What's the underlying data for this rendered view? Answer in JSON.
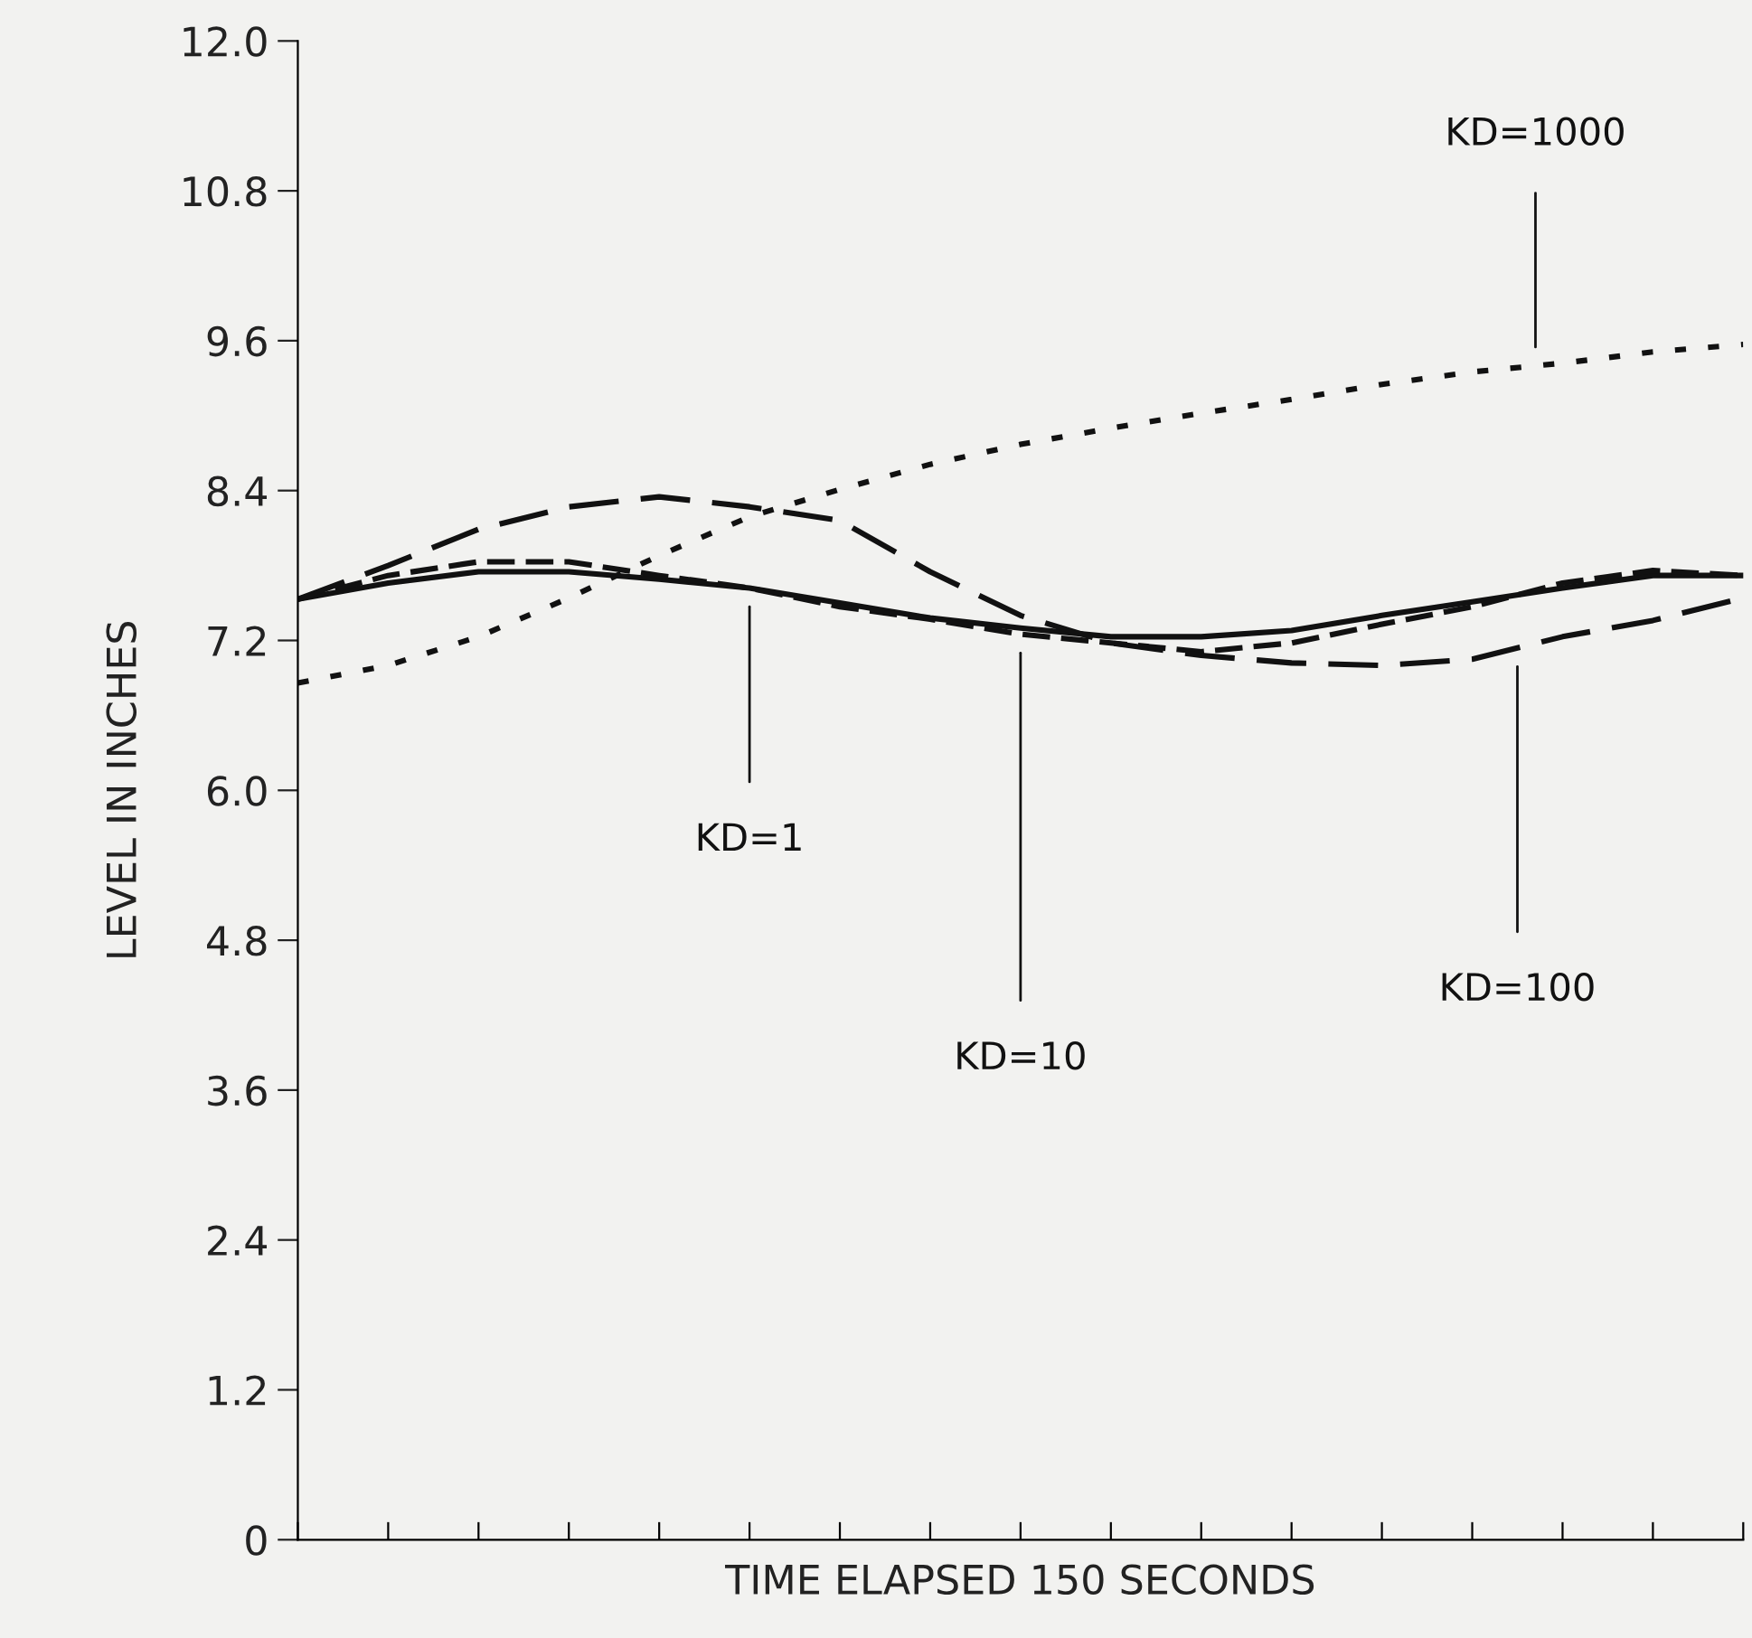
{
  "chart_data": {
    "type": "line",
    "xlabel": "TIME ELAPSED 150 SECONDS",
    "ylabel": "LEVEL IN INCHES",
    "categories": [
      null,
      null,
      null,
      null,
      null,
      null,
      null,
      null,
      null,
      null,
      null,
      null,
      null,
      null,
      null,
      null,
      null
    ],
    "series": [
      {
        "name": "KD=1",
        "color": "#111111",
        "line_style": "solid",
        "values": [
          7.53,
          7.66,
          7.75,
          7.75,
          7.69,
          7.62,
          7.5,
          7.38,
          7.3,
          7.23,
          7.23,
          7.28,
          7.4,
          7.51,
          7.62,
          7.72,
          7.72
        ]
      },
      {
        "name": "KD=10",
        "color": "#111111",
        "line_style": "dashed",
        "values": [
          7.53,
          7.72,
          7.83,
          7.83,
          7.72,
          7.62,
          7.47,
          7.37,
          7.25,
          7.18,
          7.11,
          7.18,
          7.33,
          7.47,
          7.66,
          7.76,
          7.72
        ]
      },
      {
        "name": "KD=100",
        "color": "#111111",
        "line_style": "dashed",
        "values": [
          7.53,
          7.8,
          8.09,
          8.27,
          8.35,
          8.27,
          8.16,
          7.75,
          7.4,
          7.18,
          7.08,
          7.02,
          7.0,
          7.05,
          7.23,
          7.36,
          7.54
        ]
      },
      {
        "name": "KD=1000",
        "color": "#111111",
        "line_style": "dotted",
        "values": [
          6.86,
          7.0,
          7.23,
          7.54,
          7.88,
          8.19,
          8.41,
          8.61,
          8.77,
          8.9,
          9.02,
          9.13,
          9.25,
          9.35,
          9.42,
          9.51,
          9.57
        ]
      }
    ],
    "ylim": [
      0,
      12.0
    ],
    "yticks": [
      0,
      1.2,
      2.4,
      3.6,
      4.8,
      {
        "value": 6,
        "label": "6.0"
      },
      7.2,
      8.4,
      9.6,
      10.8,
      {
        "value": 12,
        "label": "12.0"
      }
    ],
    "grid": false,
    "legend": false,
    "marker": "none"
  }
}
